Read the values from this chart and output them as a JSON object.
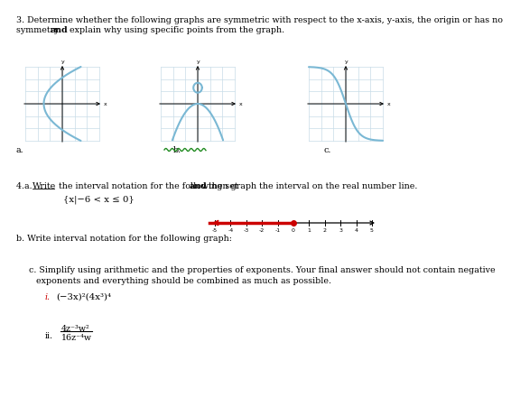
{
  "line1": "3. Determine whether the following graphs are symmetric with respect to the x-axis, y-axis, the origin or has no",
  "line2_pre": "symmetry ",
  "line2_bold": "and",
  "line2_post": " explain why using specific points from the graph.",
  "label_a": "a.",
  "label_b": "b.",
  "label_c": "c.",
  "sec4a_pre": "4.a. ",
  "sec4a_underline": "Write",
  "sec4a_mid": " the interval notation for the following set ",
  "sec4a_bold": "and",
  "sec4a_post": " then graph the interval on the real number line.",
  "set_notation": "{x|−6 < x ≤ 0}",
  "sec_b": "b. Write interval notation for the following graph:",
  "sec_c1": "c. Simplify using arithmetic and the properties of exponents. Your final answer should not contain negative",
  "sec_c2": "exponents and everything should be combined as much as possible.",
  "expr_i_label": "i.",
  "expr_i": "(−3x)²(4x³)⁴",
  "expr_ii_label": "ii.",
  "expr_ii_num": "4z⁻³w²",
  "expr_ii_den": "16z⁻⁴w",
  "graph_color": "#7ab8d4",
  "grid_color": "#c8dce8",
  "bg_color": "#ffffff",
  "red_color": "#cc0000",
  "green_color": "#228B22",
  "fs": 6.8
}
